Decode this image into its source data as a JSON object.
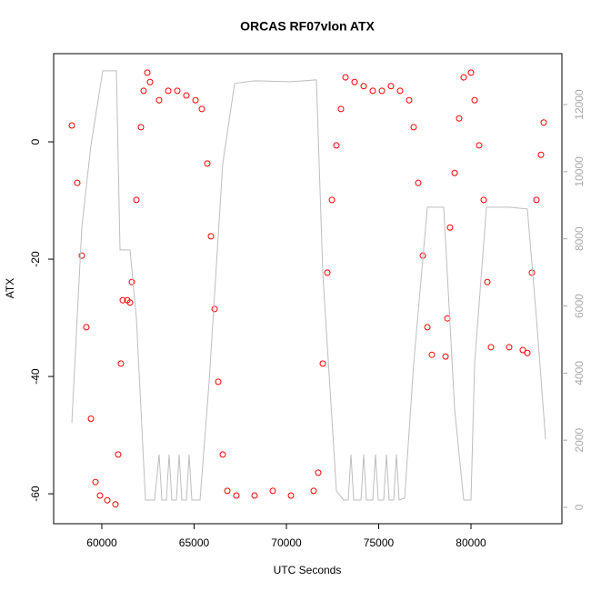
{
  "chart_data": {
    "type": "scatter",
    "title": "ORCAS RF07vlon ATX",
    "x_label": "UTC Seconds",
    "y_label": "ATX",
    "xlim": [
      57390,
      84926
    ],
    "ylim": [
      -65.1,
      15.04
    ],
    "y2lim": [
      -488,
      13518
    ],
    "xticks": [
      60000,
      65000,
      70000,
      75000,
      80000
    ],
    "yticks": [
      -60,
      -40,
      -20,
      0
    ],
    "y2ticks": [
      0,
      2000,
      4000,
      6000,
      8000,
      10000,
      12000
    ],
    "series": [
      {
        "color": "#ff0000",
        "x": [
          58375,
          58671,
          58917,
          59163,
          59410,
          59656,
          59902,
          60296,
          60740,
          60887,
          61035,
          61134,
          61380,
          61528,
          61626,
          61873,
          62119,
          62267,
          62464,
          62612,
          63104,
          63597,
          64089,
          64582,
          65075,
          65419,
          65715,
          65912,
          66109,
          66306,
          66552,
          66799,
          67291,
          68276,
          69262,
          70247,
          71478,
          71725,
          71971,
          72217,
          72464,
          72710,
          72956,
          73202,
          73695,
          74188,
          74680,
          75173,
          75665,
          76158,
          76651,
          76897,
          77143,
          77390,
          77636,
          77882,
          78621,
          78720,
          78867,
          79114,
          79360,
          79606,
          80000,
          80197,
          80444,
          80690,
          80887,
          81084,
          82069,
          82808,
          83054,
          83301,
          83547,
          83793,
          83941
        ],
        "values": [
          2.8,
          -7.0,
          -19.4,
          -31.6,
          -47.2,
          -58.0,
          -60.3,
          -61.1,
          -61.8,
          -53.3,
          -37.8,
          -27.0,
          -27.0,
          -27.4,
          -23.9,
          -9.9,
          2.5,
          8.7,
          11.8,
          10.2,
          7.1,
          8.7,
          8.7,
          7.9,
          7.1,
          5.6,
          -3.7,
          -16.1,
          -28.5,
          -40.9,
          -53.3,
          -59.5,
          -60.3,
          -60.3,
          -59.5,
          -60.3,
          -59.5,
          -56.4,
          -37.8,
          -22.3,
          -9.9,
          -0.6,
          5.6,
          11.0,
          10.2,
          9.5,
          8.7,
          8.7,
          9.5,
          8.7,
          7.1,
          2.5,
          -7.0,
          -19.4,
          -31.6,
          -36.3,
          -36.6,
          -30.1,
          -14.6,
          -5.3,
          4.0,
          11.0,
          11.8,
          7.1,
          -0.6,
          -9.9,
          -23.9,
          -35.0,
          -35.0,
          -35.5,
          -36.0,
          -22.3,
          -9.9,
          -2.2,
          3.3
        ]
      },
      {
        "type": "line",
        "axis": "y2",
        "color": "#bebebe",
        "x": [
          58375,
          58917,
          59410,
          60050,
          60789,
          60986,
          61528,
          61873,
          62365,
          62858,
          63104,
          63252,
          63498,
          63646,
          63794,
          64040,
          64188,
          64336,
          64582,
          64730,
          64878,
          65321,
          65813,
          66552,
          67193,
          68276,
          70247,
          71626,
          71971,
          72710,
          73104,
          73350,
          73498,
          73646,
          74040,
          74188,
          74335,
          74680,
          74828,
          74976,
          75271,
          75419,
          75567,
          75813,
          75961,
          76109,
          76404,
          76897,
          77636,
          78523,
          79114,
          79606,
          80000,
          80197,
          80838,
          82069,
          83054,
          83547,
          84040
        ],
        "values": [
          2520,
          8347,
          10786,
          13008,
          13008,
          7669,
          7669,
          5637,
          217,
          217,
          1572,
          217,
          217,
          1572,
          217,
          217,
          1572,
          217,
          217,
          1572,
          217,
          217,
          3740,
          10244,
          12629,
          12710,
          12683,
          12737,
          6992,
          488,
          217,
          217,
          1572,
          217,
          217,
          1572,
          217,
          217,
          1572,
          217,
          217,
          1572,
          217,
          217,
          1572,
          217,
          271,
          4282,
          8943,
          8943,
          2927,
          217,
          217,
          4282,
          8943,
          8943,
          8889,
          5637,
          2033
        ]
      }
    ]
  }
}
